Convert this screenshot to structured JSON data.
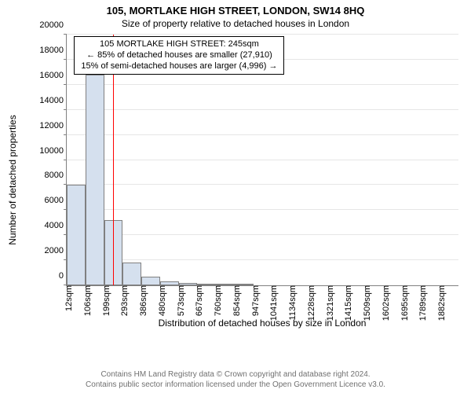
{
  "title": "105, MORTLAKE HIGH STREET, LONDON, SW14 8HQ",
  "subtitle": "Size of property relative to detached houses in London",
  "chart": {
    "type": "histogram",
    "y_label": "Number of detached properties",
    "x_label": "Distribution of detached houses by size in London",
    "plot_width_units": 21,
    "ylim_max": 20000,
    "bar_fill": "#d5e0ee",
    "bar_stroke": "#808080",
    "grid_color": "#e6e6e6",
    "marker_color": "#ff0000",
    "marker_x_units": 2.5,
    "title_fontsize": 13,
    "subtitle_fontsize": 12,
    "axis_label_fontsize": 12,
    "tick_fontsize": 11,
    "annotation_fontsize": 11,
    "y_ticks": [
      {
        "v": 0,
        "label": "0"
      },
      {
        "v": 2000,
        "label": "2000"
      },
      {
        "v": 4000,
        "label": "4000"
      },
      {
        "v": 6000,
        "label": "6000"
      },
      {
        "v": 8000,
        "label": "8000"
      },
      {
        "v": 10000,
        "label": "10000"
      },
      {
        "v": 12000,
        "label": "12000"
      },
      {
        "v": 14000,
        "label": "14000"
      },
      {
        "v": 16000,
        "label": "16000"
      },
      {
        "v": 18000,
        "label": "18000"
      },
      {
        "v": 20000,
        "label": "20000"
      }
    ],
    "x_ticks": [
      {
        "u": 0,
        "label": "12sqm"
      },
      {
        "u": 1,
        "label": "106sqm"
      },
      {
        "u": 2,
        "label": "199sqm"
      },
      {
        "u": 3,
        "label": "293sqm"
      },
      {
        "u": 4,
        "label": "386sqm"
      },
      {
        "u": 5,
        "label": "480sqm"
      },
      {
        "u": 6,
        "label": "573sqm"
      },
      {
        "u": 7,
        "label": "667sqm"
      },
      {
        "u": 8,
        "label": "760sqm"
      },
      {
        "u": 9,
        "label": "854sqm"
      },
      {
        "u": 10,
        "label": "947sqm"
      },
      {
        "u": 11,
        "label": "1041sqm"
      },
      {
        "u": 12,
        "label": "1134sqm"
      },
      {
        "u": 13,
        "label": "1228sqm"
      },
      {
        "u": 14,
        "label": "1321sqm"
      },
      {
        "u": 15,
        "label": "1415sqm"
      },
      {
        "u": 16,
        "label": "1509sqm"
      },
      {
        "u": 17,
        "label": "1602sqm"
      },
      {
        "u": 18,
        "label": "1695sqm"
      },
      {
        "u": 19,
        "label": "1789sqm"
      },
      {
        "u": 20,
        "label": "1882sqm"
      }
    ],
    "bars": [
      {
        "u": 0,
        "v": 8000
      },
      {
        "u": 1,
        "v": 16800
      },
      {
        "u": 2,
        "v": 5200
      },
      {
        "u": 3,
        "v": 1800
      },
      {
        "u": 4,
        "v": 700
      },
      {
        "u": 5,
        "v": 320
      },
      {
        "u": 6,
        "v": 180
      },
      {
        "u": 7,
        "v": 110
      },
      {
        "u": 8,
        "v": 70
      },
      {
        "u": 9,
        "v": 40
      }
    ],
    "annotation": {
      "line1": "105 MORTLAKE HIGH STREET: 245sqm",
      "line2": "← 85% of detached houses are smaller (27,910)",
      "line3": "15% of semi-detached houses are larger (4,996) →"
    }
  },
  "footer": {
    "line1": "Contains HM Land Registry data © Crown copyright and database right 2024.",
    "line2": "Contains public sector information licensed under the Open Government Licence v3.0.",
    "color": "#707070",
    "fontsize": 10
  }
}
